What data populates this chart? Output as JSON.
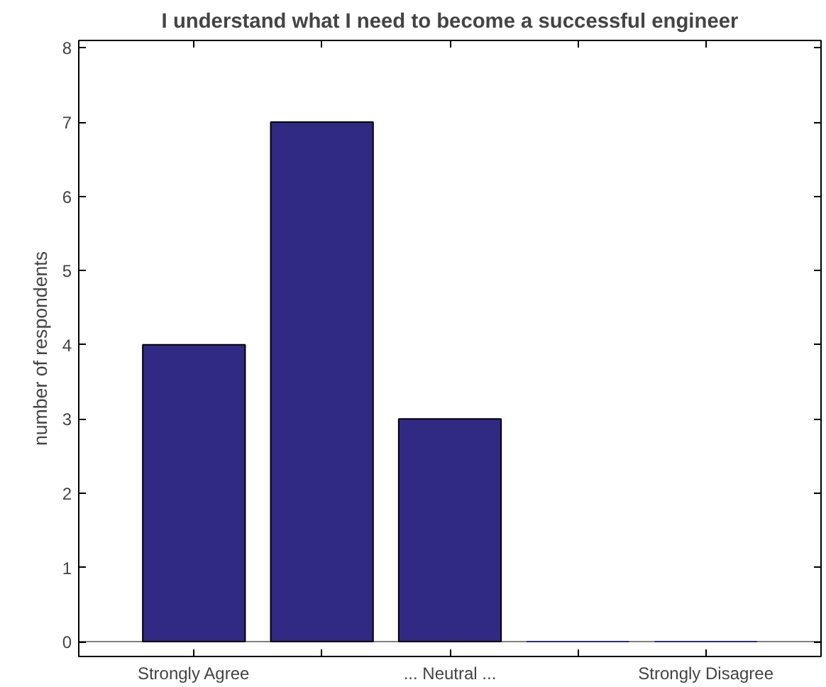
{
  "chart_data": {
    "type": "bar",
    "title": "I understand what I need to become a successful engineer",
    "ylabel": "number of respondents",
    "categories": [
      "Strongly Agree",
      null,
      "... Neutral ...",
      null,
      "Strongly Disagree"
    ],
    "values": [
      4,
      7,
      3,
      0,
      0
    ],
    "color": "#302a85",
    "ylim": [
      -0.2,
      8.1
    ],
    "yticks": [
      0,
      1,
      2,
      3,
      4,
      5,
      6,
      7,
      8
    ],
    "grid": false,
    "ref_lines": [
      {
        "axis": "y",
        "value": 0,
        "color": "#808080"
      }
    ]
  }
}
